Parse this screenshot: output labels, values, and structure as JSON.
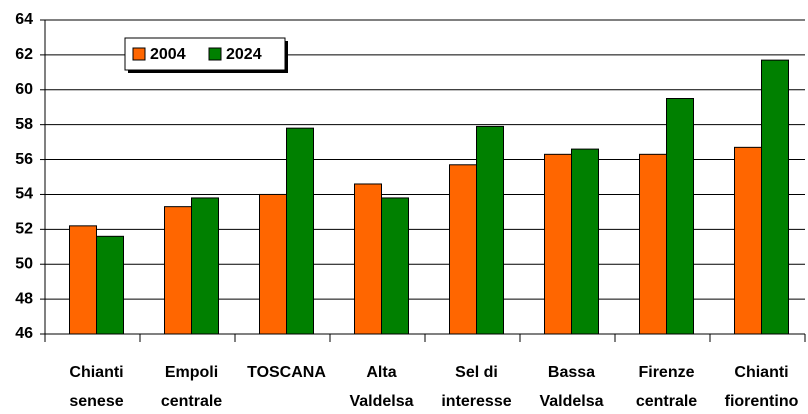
{
  "chart_data": {
    "type": "bar",
    "categories": [
      [
        "Chianti",
        "senese"
      ],
      [
        "Empoli",
        "centrale"
      ],
      [
        "TOSCANA"
      ],
      [
        "Alta",
        "Valdelsa"
      ],
      [
        "Sel di",
        "interesse"
      ],
      [
        "Bassa",
        "Valdelsa"
      ],
      [
        "Firenze",
        "centrale"
      ],
      [
        "Chianti",
        "fiorentino"
      ]
    ],
    "series": [
      {
        "name": "2004",
        "color": "#ff6600",
        "values": [
          52.2,
          53.3,
          54.0,
          54.6,
          55.7,
          56.3,
          56.3,
          56.7
        ]
      },
      {
        "name": "2024",
        "color": "#008000",
        "values": [
          51.6,
          53.8,
          57.8,
          53.8,
          57.9,
          56.6,
          59.5,
          61.7
        ]
      }
    ],
    "ylim": [
      46,
      64
    ],
    "yticks": [
      46,
      48,
      50,
      52,
      54,
      56,
      58,
      60,
      62,
      64
    ],
    "grid": true,
    "legend": "upper left"
  }
}
